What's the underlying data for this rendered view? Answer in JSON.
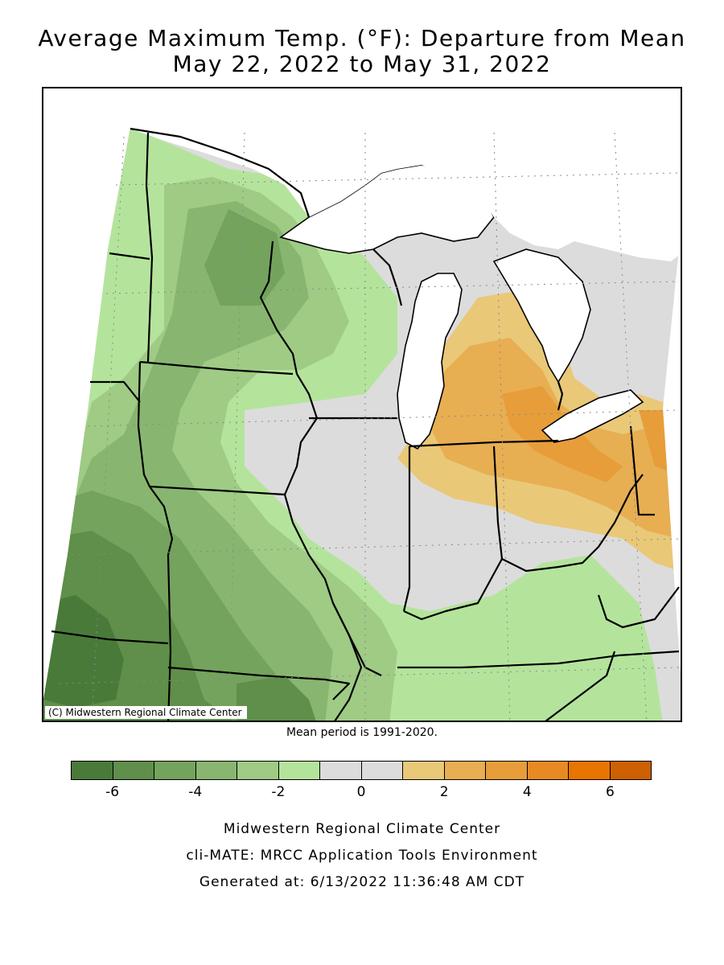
{
  "title": {
    "line1": "Average Maximum Temp. (°F): Departure from Mean",
    "line2": "May 22, 2022 to May 31, 2022"
  },
  "map": {
    "copyright": "(C) Midwestern Regional Climate Center",
    "mean_period": "Mean period is 1991-2020."
  },
  "legend": {
    "colors": [
      "#4a7a3a",
      "#5f8f4a",
      "#74a35e",
      "#88b670",
      "#9fcb85",
      "#b4e49c",
      "#dcdcdc",
      "#dcdcdc",
      "#e9c877",
      "#e8ae52",
      "#e79d3a",
      "#e88a24",
      "#e77500",
      "#cd6000"
    ],
    "tick_labels": [
      "-6",
      "-4",
      "-2",
      "0",
      "2",
      "4",
      "6"
    ],
    "tick_values": [
      -6,
      -4,
      -2,
      0,
      2,
      4,
      6
    ],
    "range": [
      -7,
      7
    ]
  },
  "footer": {
    "line1": "Midwestern Regional Climate Center",
    "line2": "cli-MATE: MRCC Application Tools Environment",
    "line3": "Generated at: 6/13/2022 11:36:48 AM CDT"
  }
}
